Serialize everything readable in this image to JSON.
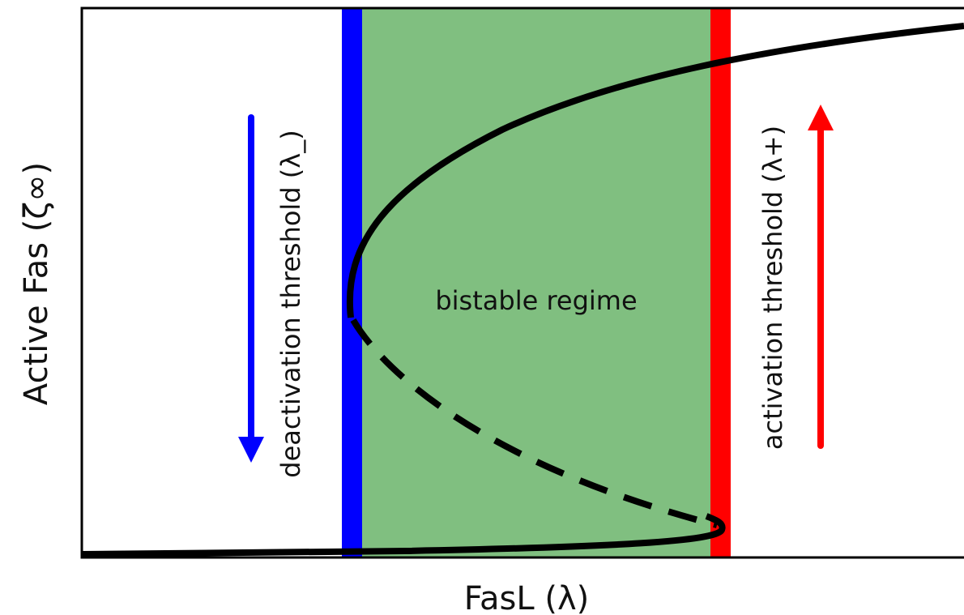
{
  "x_axis_label": "FasL (λ)",
  "y_axis_label": "Active Fas (ζ∞)",
  "regions": {
    "bistable": "bistable regime"
  },
  "thresholds": {
    "deactivation": "deactivation threshold (λ_)",
    "activation": "activation threshold (λ+)"
  }
}
